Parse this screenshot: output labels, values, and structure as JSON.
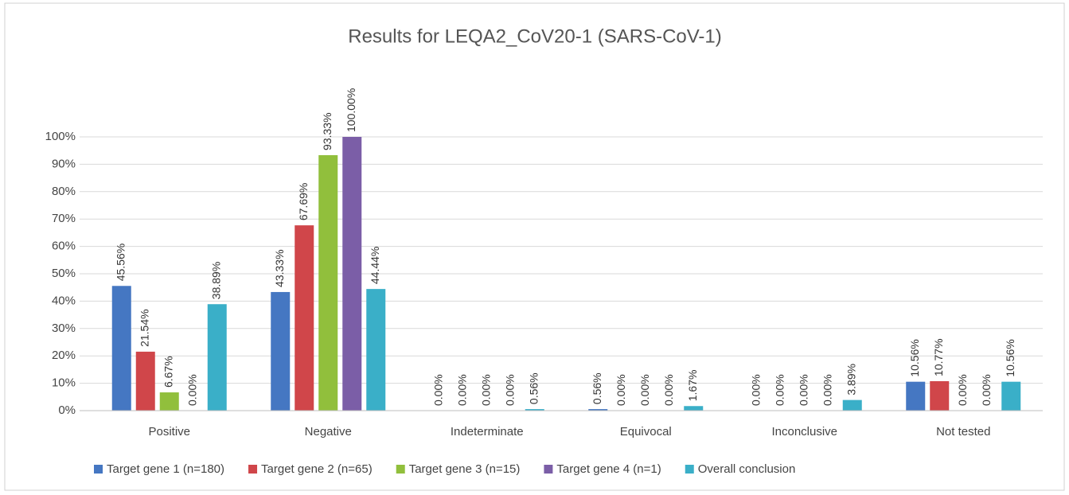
{
  "chart_data": {
    "type": "bar",
    "title": "Results for LEQA2_CoV20-1 (SARS-CoV-1)",
    "categories": [
      "Positive",
      "Negative",
      "Indeterminate",
      "Equivocal",
      "Inconclusive",
      "Not tested"
    ],
    "series": [
      {
        "name": "Target gene 1 (n=180)",
        "color": "#4577c2",
        "values": [
          45.56,
          43.33,
          0.0,
          0.56,
          0.0,
          10.56
        ],
        "value_labels": [
          "45.56%",
          "43.33%",
          "0.00%",
          "0.56%",
          "0.00%",
          "10.56%"
        ]
      },
      {
        "name": "Target gene 2 (n=65)",
        "color": "#d0464a",
        "values": [
          21.54,
          67.69,
          0.0,
          0.0,
          0.0,
          10.77
        ],
        "value_labels": [
          "21.54%",
          "67.69%",
          "0.00%",
          "0.00%",
          "0.00%",
          "10.77%"
        ]
      },
      {
        "name": "Target gene 3 (n=15)",
        "color": "#91bf3c",
        "values": [
          6.67,
          93.33,
          0.0,
          0.0,
          0.0,
          0.0
        ],
        "value_labels": [
          "6.67%",
          "93.33%",
          "0.00%",
          "0.00%",
          "0.00%",
          "0.00%"
        ]
      },
      {
        "name": "Target gene 4 (n=1)",
        "color": "#7b5ea7",
        "values": [
          0.0,
          100.0,
          0.0,
          0.0,
          0.0,
          0.0
        ],
        "value_labels": [
          "0.00%",
          "100.00%",
          "0.00%",
          "0.00%",
          "0.00%",
          "0.00%"
        ]
      },
      {
        "name": "Overall conclusion",
        "color": "#3aafc8",
        "values": [
          38.89,
          44.44,
          0.56,
          1.67,
          3.89,
          10.56
        ],
        "value_labels": [
          "38.89%",
          "44.44%",
          "0.56%",
          "1.67%",
          "3.89%",
          "10.56%"
        ]
      }
    ],
    "ylim": [
      0,
      100
    ],
    "yticks": [
      {
        "value": 0,
        "label": "0%"
      },
      {
        "value": 10,
        "label": "10%"
      },
      {
        "value": 20,
        "label": "20%"
      },
      {
        "value": 30,
        "label": "30%"
      },
      {
        "value": 40,
        "label": "40%"
      },
      {
        "value": 50,
        "label": "50%"
      },
      {
        "value": 60,
        "label": "60%"
      },
      {
        "value": 70,
        "label": "70%"
      },
      {
        "value": 80,
        "label": "80%"
      },
      {
        "value": 90,
        "label": "90%"
      },
      {
        "value": 100,
        "label": "100%"
      }
    ],
    "grid": true
  }
}
